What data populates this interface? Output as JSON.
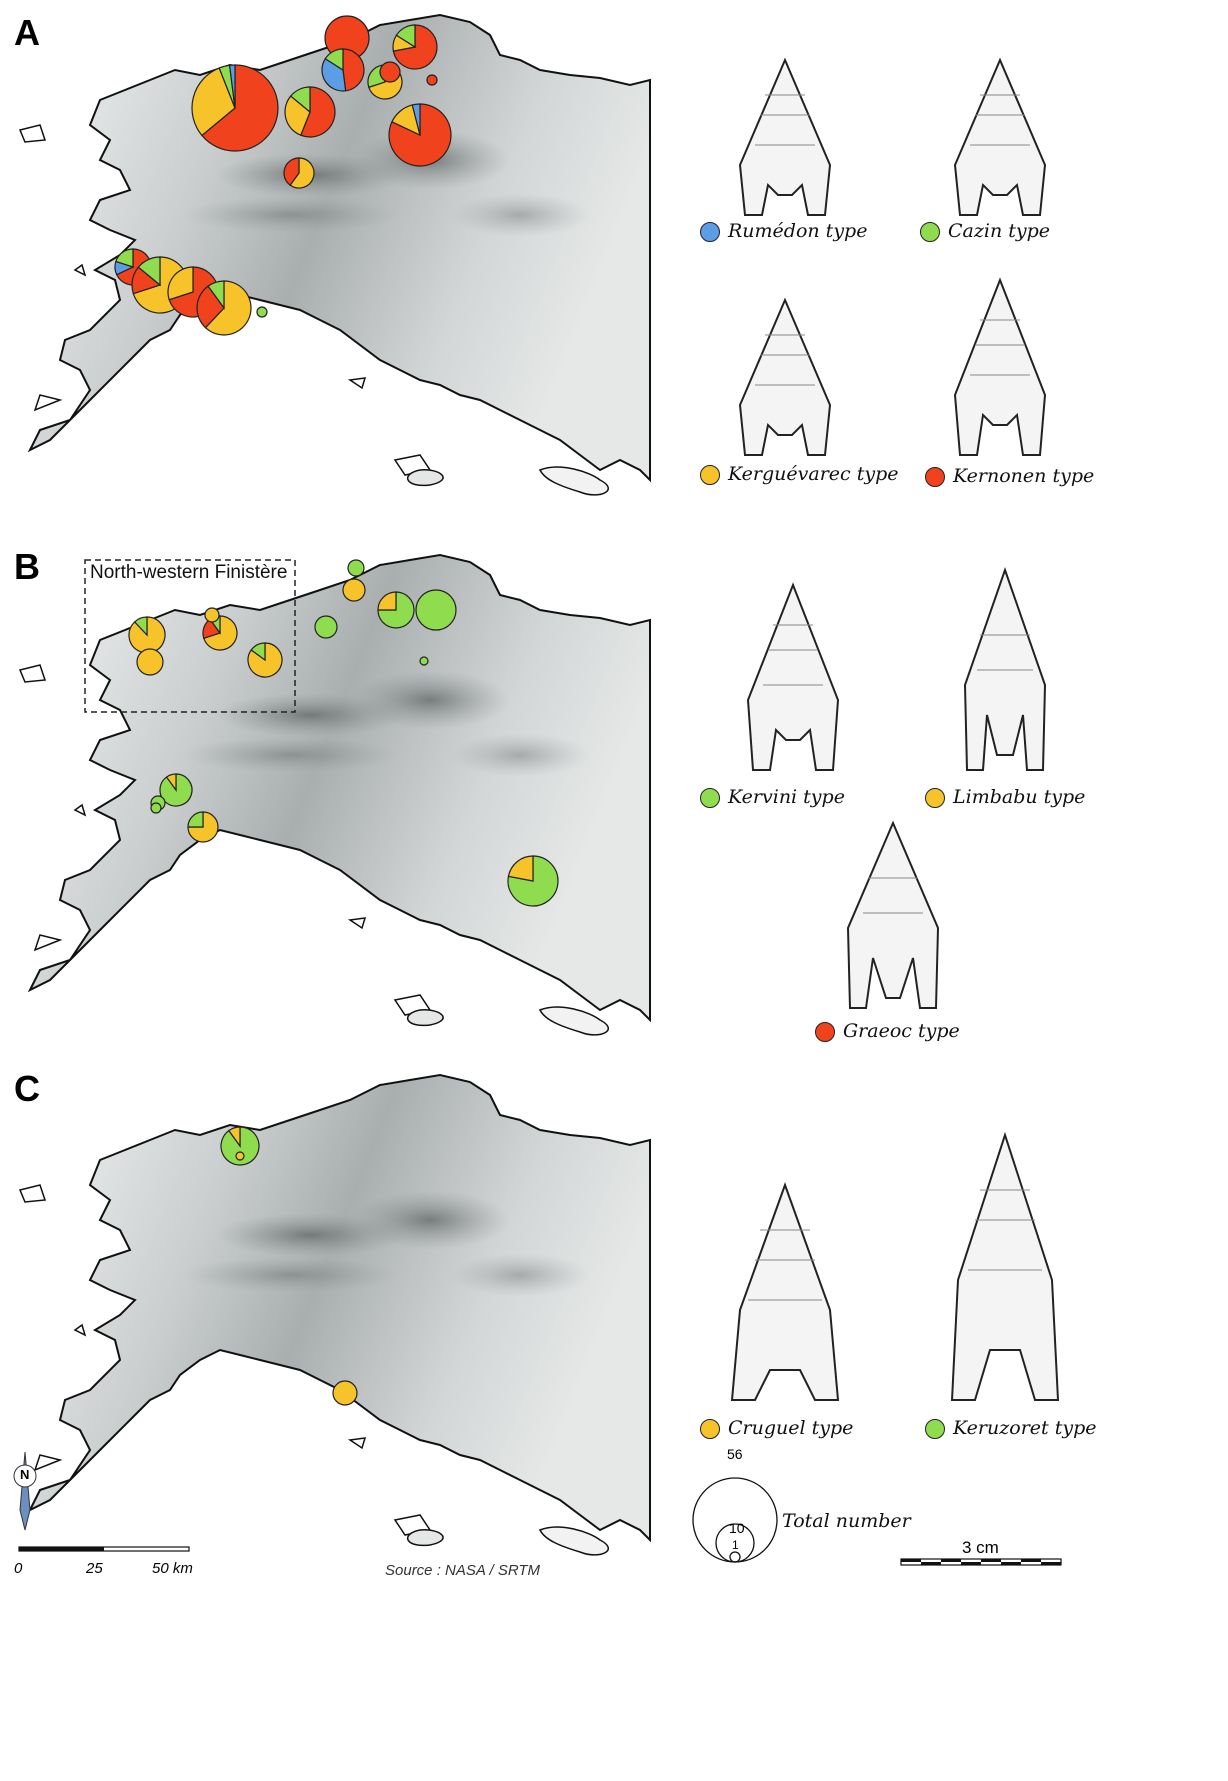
{
  "colors": {
    "rumedon": "#5b9ee6",
    "cazin": "#8fdc4f",
    "kerguevarec": "#f7c32a",
    "kernonen": "#f0421c",
    "kervini": "#8fdc4f",
    "limbabu": "#f7c32a",
    "graeoc": "#f0421c",
    "cruguel": "#f7c32a",
    "keruzoret": "#8fdc4f"
  },
  "panels": {
    "a": {
      "letter": "A",
      "legend": [
        {
          "key": "rumedon",
          "label": "Rumédon type"
        },
        {
          "key": "cazin",
          "label": "Cazin type"
        },
        {
          "key": "kerguevarec",
          "label": "Kerguévarec type"
        },
        {
          "key": "kernonen",
          "label": "Kernonen type"
        }
      ]
    },
    "b": {
      "letter": "B",
      "inset_label": "North-western Finistère",
      "legend": [
        {
          "key": "kervini",
          "label": "Kervini type"
        },
        {
          "key": "limbabu",
          "label": "Limbabu type"
        },
        {
          "key": "graeoc",
          "label": "Graeoc type"
        }
      ]
    },
    "c": {
      "letter": "C",
      "legend": [
        {
          "key": "cruguel",
          "label": "Cruguel type"
        },
        {
          "key": "keruzoret",
          "label": "Keruzoret type"
        }
      ]
    }
  },
  "size_legend": {
    "values": [
      "56",
      "10",
      "1"
    ],
    "label": "Total number"
  },
  "scale_bar": {
    "ticks": [
      "0",
      "25",
      "50 km"
    ],
    "cm_label": "3 cm"
  },
  "north_label": "N",
  "source": "Source : NASA / SRTM"
}
